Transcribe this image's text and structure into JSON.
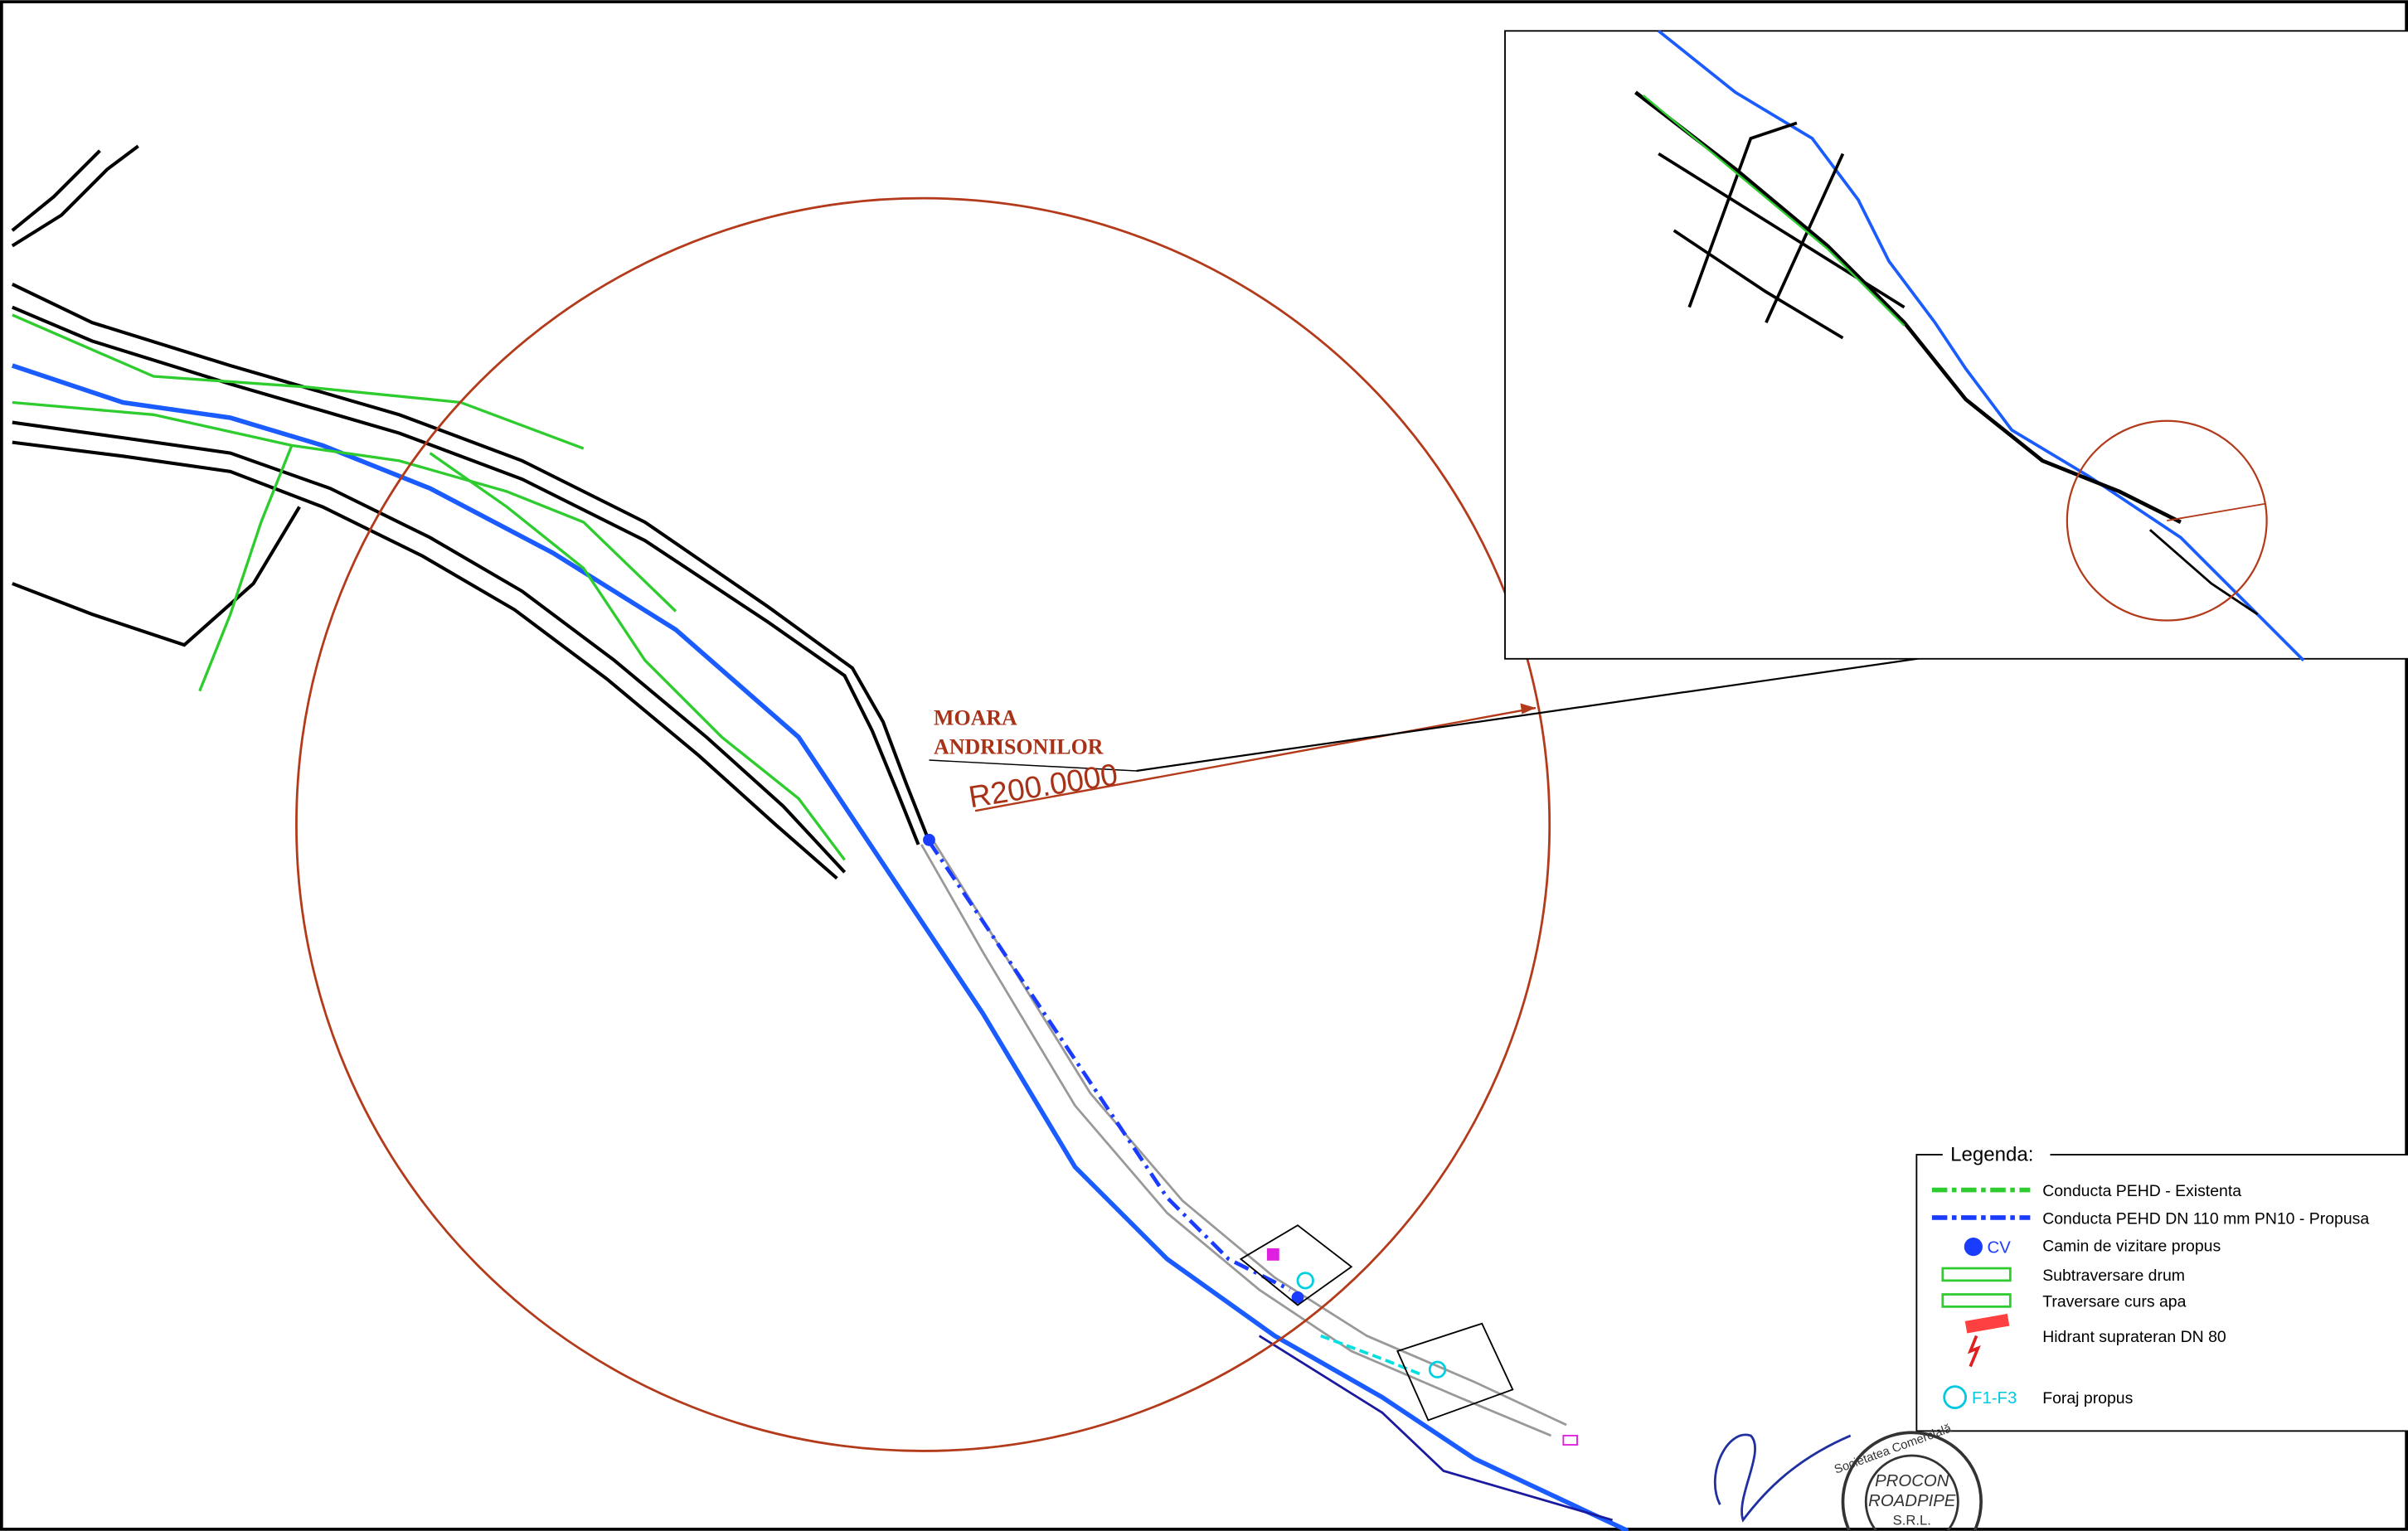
{
  "labels": {
    "place_line1": "MOARA",
    "place_line2": "ANDRISONILOR",
    "radius": "R200.0000"
  },
  "legend": {
    "title": "Legenda:",
    "items": [
      {
        "label": "Conducta PEHD - Existenta"
      },
      {
        "label": "Conducta PEHD DN 110 mm PN10 - Propusa"
      },
      {
        "symbol_label": "CV",
        "label": "Camin de vizitare propus"
      },
      {
        "label": "Subtraversare drum"
      },
      {
        "label": "Traversare curs apa"
      },
      {
        "label": "Hidrant suprateran DN 80"
      },
      {
        "symbol_label": "F1-F3",
        "label": "Foraj propus"
      }
    ]
  },
  "stamp": {
    "top": "Societatea Comercială",
    "line1": "PROCON",
    "line2": "ROADPIPE",
    "line3": "S.R.L."
  }
}
